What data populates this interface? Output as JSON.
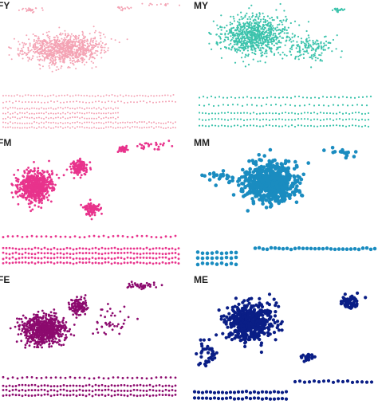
{
  "panels": [
    {
      "label": "FY",
      "color": "#f4a3b4"
    },
    {
      "label": "MY",
      "color": "#3cc3ac"
    },
    {
      "label": "FM",
      "color": "#e8338c"
    },
    {
      "label": "MM",
      "color": "#1a8cc0"
    },
    {
      "label": "FE",
      "color": "#8c0a6e"
    },
    {
      "label": "ME",
      "color": "#0a1e86"
    }
  ]
}
